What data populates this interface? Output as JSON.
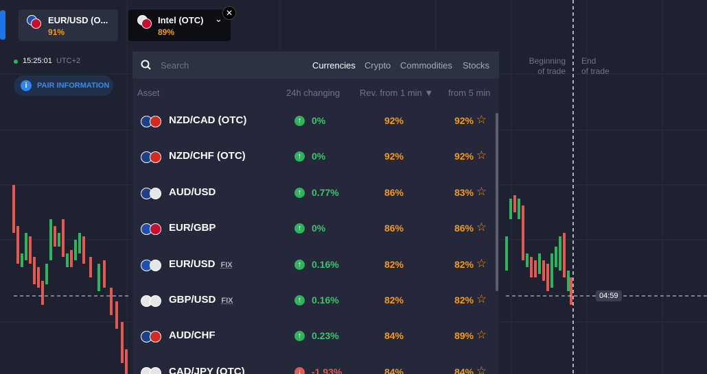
{
  "tabs": [
    {
      "name": "EUR/USD (O...",
      "payout": "91%"
    },
    {
      "name": "Intel (OTC)",
      "payout": "89%"
    }
  ],
  "clock": {
    "time": "15:25:01",
    "zone": "UTC+2"
  },
  "pair_info_button": "PAIR INFORMATION",
  "chart_labels": {
    "beginning": [
      "Beginning",
      "of trade"
    ],
    "end": [
      "End",
      "of trade"
    ],
    "timer": "04:59"
  },
  "search_placeholder": "Search",
  "filters": [
    "Currencies",
    "Crypto",
    "Commodities",
    "Stocks"
  ],
  "columns": [
    "Asset",
    "24h changing",
    "Rev. from 1 min ▼",
    "from 5 min"
  ],
  "rows": [
    {
      "asset": "NZD/CAD (OTC)",
      "change": "0%",
      "rev_1min": "92%",
      "rev_5min": "92%"
    },
    {
      "asset": "NZD/CHF (OTC)",
      "change": "0%",
      "rev_1min": "92%",
      "rev_5min": "92%"
    },
    {
      "asset": "AUD/USD",
      "change": "0.77%",
      "rev_1min": "86%",
      "rev_5min": "83%"
    },
    {
      "asset": "EUR/GBP",
      "change": "0%",
      "rev_1min": "86%",
      "rev_5min": "86%"
    },
    {
      "asset": "EUR/USD",
      "tag": "FIX",
      "change": "0.16%",
      "rev_1min": "82%",
      "rev_5min": "82%"
    },
    {
      "asset": "GBP/USD",
      "tag": "FIX",
      "change": "0.16%",
      "rev_1min": "82%",
      "rev_5min": "82%"
    },
    {
      "asset": "AUD/CHF",
      "change": "0.23%",
      "rev_1min": "84%",
      "rev_5min": "89%"
    },
    {
      "asset": "CAD/JPY (OTC)",
      "change": "-1.93%",
      "rev_1min": "84%",
      "rev_5min": "84%"
    }
  ]
}
